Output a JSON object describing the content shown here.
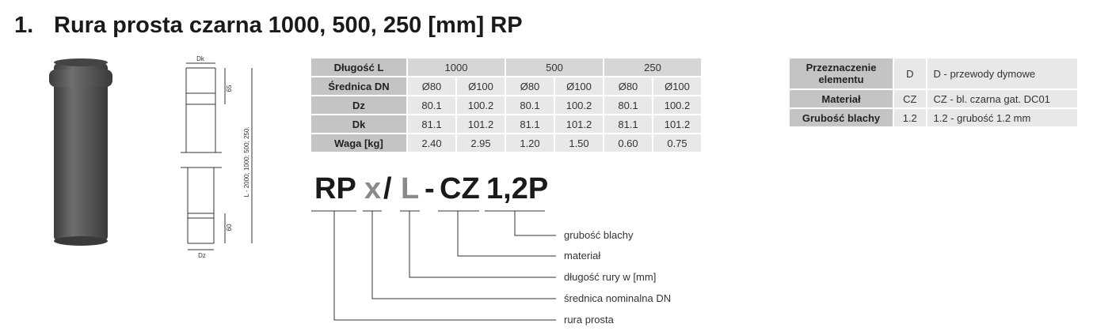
{
  "header": {
    "number": "1.",
    "title": "Rura prosta czarna 1000, 500, 250 [mm] RP"
  },
  "drawing": {
    "dk": "Dk",
    "top": "65",
    "length": "L - 2000; 1000; 500; 250.",
    "bottom": "60",
    "dz": "Dz"
  },
  "spec_table": {
    "header": [
      "Długość L",
      "1000",
      "500",
      "250"
    ],
    "rows": [
      [
        "Średnica DN",
        "Ø80",
        "Ø100",
        "Ø80",
        "Ø100",
        "Ø80",
        "Ø100"
      ],
      [
        "Dz",
        "80.1",
        "100.2",
        "80.1",
        "100.2",
        "80.1",
        "100.2"
      ],
      [
        "Dk",
        "81.1",
        "101.2",
        "81.1",
        "101.2",
        "81.1",
        "101.2"
      ],
      [
        "Waga [kg]",
        "2.40",
        "2.95",
        "1.20",
        "1.50",
        "0.60",
        "0.75"
      ]
    ]
  },
  "code": {
    "parts": [
      "RP",
      "x",
      "/",
      "L",
      "-",
      "CZ",
      "1,2P"
    ],
    "legend": [
      "grubość blachy",
      "materiał",
      "długość rury w [mm]",
      "średnica nominalna DN",
      "rura prosta"
    ]
  },
  "info_table": {
    "rows": [
      [
        "Przeznaczenie elementu",
        "D",
        "D - przewody dymowe"
      ],
      [
        "Materiał",
        "CZ",
        "CZ - bl. czarna gat. DC01"
      ],
      [
        "Grubość blachy",
        "1.2",
        "1.2 - grubość 1.2 mm"
      ]
    ]
  }
}
